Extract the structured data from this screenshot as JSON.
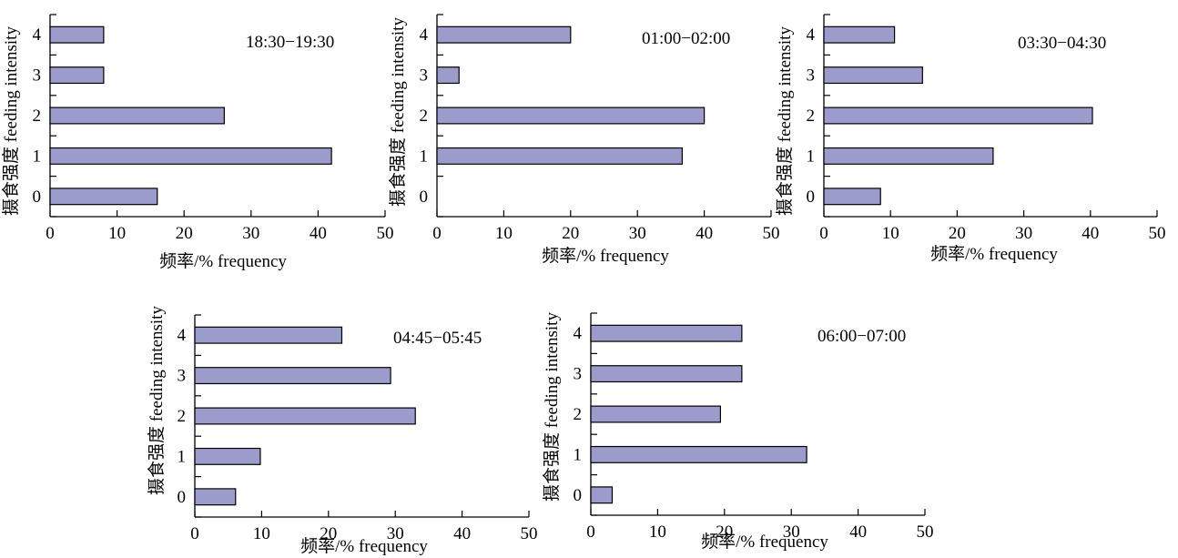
{
  "bar_color": "#9b9bcc",
  "bar_stroke": "#000000",
  "chart_data": [
    {
      "type": "bar",
      "orientation": "horizontal",
      "title": "",
      "annotation": "18:30−19:30",
      "categories": [
        "0",
        "1",
        "2",
        "3",
        "4"
      ],
      "values": [
        16,
        42,
        26,
        8,
        8
      ],
      "xlabel": "频率/% frequency",
      "ylabel": "摄食强度 feeding intensity",
      "xlim": [
        0,
        50
      ],
      "xticks": [
        "0",
        "10",
        "20",
        "30",
        "40",
        "50"
      ],
      "grid": false
    },
    {
      "type": "bar",
      "orientation": "horizontal",
      "title": "",
      "annotation": "01:00−02:00",
      "categories": [
        "0",
        "1",
        "2",
        "3",
        "4"
      ],
      "values": [
        0,
        36.7,
        40,
        3.3,
        20
      ],
      "xlabel": "频率/% frequency",
      "ylabel": "摄食强度 feeding intensity",
      "xlim": [
        0,
        50
      ],
      "xticks": [
        "0",
        "10",
        "20",
        "30",
        "40",
        "50"
      ],
      "grid": false
    },
    {
      "type": "bar",
      "orientation": "horizontal",
      "title": "",
      "annotation": "03:30−04:30",
      "categories": [
        "0",
        "1",
        "2",
        "3",
        "4"
      ],
      "values": [
        8.5,
        25.4,
        40.3,
        14.8,
        10.6
      ],
      "xlabel": "频率/% frequency",
      "ylabel": "摄食强度 feeding intensity",
      "xlim": [
        0,
        50
      ],
      "xticks": [
        "0",
        "10",
        "20",
        "30",
        "40",
        "50"
      ],
      "grid": false
    },
    {
      "type": "bar",
      "orientation": "horizontal",
      "title": "",
      "annotation": "04:45−05:45",
      "categories": [
        "0",
        "1",
        "2",
        "3",
        "4"
      ],
      "values": [
        6.1,
        9.8,
        33,
        29.3,
        22
      ],
      "xlabel": "频率/% frequency",
      "ylabel": "摄食强度 feeding intensity",
      "xlim": [
        0,
        50
      ],
      "xticks": [
        "0",
        "10",
        "20",
        "30",
        "40",
        "50"
      ],
      "grid": false
    },
    {
      "type": "bar",
      "orientation": "horizontal",
      "title": "",
      "annotation": "06:00−07:00",
      "categories": [
        "0",
        "1",
        "2",
        "3",
        "4"
      ],
      "values": [
        3.2,
        32.3,
        19.4,
        22.6,
        22.6
      ],
      "xlabel": "频率/% frequency",
      "ylabel": "摄食强度 feeding intensity",
      "xlim": [
        0,
        50
      ],
      "xticks": [
        "0",
        "10",
        "20",
        "30",
        "40",
        "50"
      ],
      "grid": false
    }
  ]
}
